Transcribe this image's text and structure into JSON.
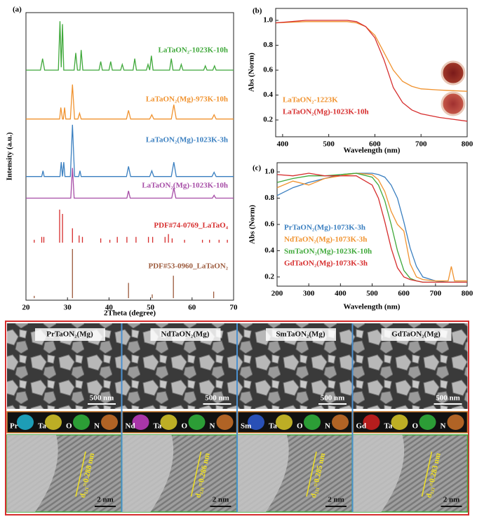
{
  "chart_data": [
    {
      "type": "line",
      "label": "(a)",
      "xlabel": "2Theta (degree)",
      "ylabel": "Intensity (a.u.)",
      "xlim": [
        20,
        70
      ],
      "ylim": [
        0,
        100
      ],
      "xticks": [
        20,
        30,
        40,
        50,
        60,
        70
      ],
      "series": [
        {
          "name": "LaTaON₂-1023K-10h",
          "color": "#3fa83a",
          "x": [
            20,
            23.5,
            24,
            24.5,
            27.8,
            28.2,
            28.5,
            28.8,
            29.1,
            31.6,
            32,
            32.4,
            33,
            33.3,
            33.7,
            37.6,
            38,
            38.4,
            40,
            40.4,
            40.8,
            42.8,
            43.2,
            43.6,
            45.8,
            46.2,
            46.6,
            49,
            49.4,
            49.8,
            50.2,
            50.6,
            54.6,
            55,
            55.4,
            57,
            57.4,
            57.8,
            62.8,
            63.2,
            63.6,
            65,
            65.4,
            65.8,
            70
          ],
          "values": [
            80,
            80,
            84,
            80,
            80,
            97,
            81,
            96,
            80,
            80,
            86,
            80,
            80,
            87,
            80,
            80,
            83,
            80,
            80,
            83,
            80,
            80,
            82,
            80,
            80,
            84,
            80,
            80,
            82,
            80,
            85,
            80,
            80,
            84,
            80,
            80,
            82,
            80,
            80,
            81.5,
            80,
            80,
            81.5,
            80,
            80
          ]
        },
        {
          "name": "LaTaON₂(Mg)-973K-10h",
          "color": "#f0922e",
          "x": [
            20,
            28.1,
            28.4,
            28.8,
            29,
            29.3,
            29.6,
            30.7,
            31.2,
            31.7,
            32.5,
            32.9,
            33.3,
            44.2,
            44.7,
            45.2,
            49.8,
            50.3,
            50.8,
            55,
            55.6,
            56.2,
            64.8,
            65.3,
            65.8,
            70
          ],
          "values": [
            63,
            63,
            67,
            63,
            63,
            67,
            63,
            63,
            75,
            63,
            63,
            65,
            63,
            63,
            66,
            63,
            63,
            64.5,
            63,
            63,
            68,
            63,
            63,
            64.5,
            63,
            63
          ]
        },
        {
          "name": "LaTaON₂(Mg)-1023K-3h",
          "color": "#3a7fc0",
          "x": [
            20,
            23.8,
            24.1,
            24.4,
            28.2,
            28.5,
            28.8,
            29.1,
            29.4,
            30.7,
            31.2,
            31.7,
            32.7,
            33,
            33.3,
            44.2,
            44.7,
            45.2,
            49.8,
            50.3,
            50.8,
            55,
            55.6,
            56.2,
            64.8,
            65.3,
            65.8,
            70
          ],
          "values": [
            43,
            43,
            45,
            43,
            43,
            48,
            43,
            48,
            43,
            43,
            61,
            43,
            43,
            45,
            43,
            43,
            46.5,
            43,
            43,
            45,
            43,
            43,
            48,
            43,
            43,
            44.5,
            43,
            43
          ]
        },
        {
          "name": "LaTaON₂(Mg)-1023K-10h",
          "color": "#a64ca6",
          "x": [
            20,
            30.8,
            31.2,
            31.6,
            44.3,
            44.7,
            45.1,
            55.1,
            55.6,
            56.1,
            64.9,
            65.3,
            65.7,
            70
          ],
          "values": [
            35.5,
            35.5,
            46,
            35.5,
            35.5,
            38,
            35.5,
            35.5,
            39,
            35.5,
            35.5,
            36.5,
            35.5,
            35.5
          ]
        },
        {
          "name": "PDF#74-0769_LaTaO₄",
          "color": "#d62d2d",
          "x": [
            22,
            22,
            22,
            23.8,
            23.8,
            23.8,
            24.3,
            24.3,
            24.3,
            28.1,
            28.1,
            28.1,
            28.8,
            28.8,
            28.8,
            31.2,
            31.2,
            31.2,
            32.8,
            32.8,
            32.8,
            33.6,
            33.6,
            33.6,
            38,
            38,
            38,
            40.2,
            40.2,
            40.2,
            42,
            42,
            42,
            44.3,
            44.3,
            44.3,
            46.5,
            46.5,
            46.5,
            49.5,
            49.5,
            49.5,
            50.5,
            50.5,
            50.5,
            53.5,
            53.5,
            53.5,
            54.3,
            54.3,
            54.3,
            55.2,
            55.2,
            55.2,
            58.2,
            58.2,
            58.2,
            62.5,
            62.5,
            62.5,
            64.2,
            64.2,
            64.2,
            66.5,
            66.5,
            66.5,
            68.5,
            68.5,
            68.5
          ],
          "values": [
            20,
            21,
            null,
            20,
            22,
            null,
            20,
            22,
            null,
            20,
            31.5,
            null,
            20,
            30,
            null,
            20,
            25,
            null,
            20,
            22.5,
            null,
            20,
            22,
            null,
            20,
            21.5,
            null,
            20,
            21,
            null,
            20,
            22,
            null,
            20,
            22,
            null,
            20,
            22,
            null,
            20,
            22,
            null,
            20,
            22,
            null,
            20,
            22,
            null,
            20,
            23,
            null,
            20,
            21.5,
            null,
            20,
            21,
            null,
            20,
            21,
            null,
            20,
            21,
            null,
            20,
            21,
            null,
            20,
            21,
            null
          ]
        },
        {
          "name": "PDF#53-0960_LaTaON₂",
          "color": "#9c5a3c",
          "x": [
            22,
            22,
            22,
            31.2,
            31.2,
            31.2,
            44.7,
            44.7,
            44.7,
            50.4,
            50.4,
            50.4,
            55.5,
            55.5,
            55.5,
            65.2,
            65.2,
            65.2
          ],
          "values": [
            0.7,
            1.5,
            null,
            0.7,
            17.8,
            null,
            0.7,
            6,
            null,
            0.7,
            2,
            null,
            0.7,
            8.5,
            null,
            0.7,
            3,
            null
          ]
        }
      ]
    },
    {
      "type": "line",
      "label": "(b)",
      "xlabel": "Wavelength (nm)",
      "ylabel": "Abs (Norm)",
      "xlim": [
        385,
        800
      ],
      "ylim": [
        0.065,
        1.096
      ],
      "xticks": [
        400,
        500,
        600,
        700,
        800
      ],
      "yticks": [
        0.2,
        0.4,
        0.6,
        0.8,
        {
          "value": 1,
          "label": "1.0"
        }
      ],
      "x": [
        385,
        450,
        500,
        540,
        560,
        580,
        600,
        620,
        640,
        660,
        680,
        700,
        740,
        800
      ],
      "series": [
        {
          "name": "LaTaON₂-1223K",
          "color": "#f0922e",
          "values": [
            0.98,
            0.99,
            0.99,
            0.99,
            0.98,
            0.95,
            0.88,
            0.74,
            0.6,
            0.51,
            0.47,
            0.45,
            0.44,
            0.43
          ]
        },
        {
          "name": "LaTaON₂(Mg)-1023K-10h",
          "color": "#d62d2d",
          "values": [
            0.98,
            1.0,
            1.0,
            1.0,
            0.99,
            0.95,
            0.86,
            0.68,
            0.46,
            0.34,
            0.28,
            0.25,
            0.22,
            0.19
          ]
        }
      ]
    },
    {
      "type": "line",
      "label": "(c)",
      "xlabel": "Wavelength (nm)",
      "ylabel": "Abs (Norm)",
      "xlim": [
        200,
        800
      ],
      "ylim": [
        0.13,
        1.07
      ],
      "xticks": [
        200,
        300,
        400,
        500,
        600,
        700,
        800
      ],
      "yticks": [
        0.2,
        0.4,
        0.6,
        0.8,
        {
          "value": 1,
          "label": "1.0"
        }
      ],
      "x": [
        200,
        250,
        300,
        350,
        400,
        450,
        500,
        520,
        540,
        560,
        580,
        600,
        620,
        640,
        660,
        700,
        740,
        750,
        760,
        800
      ],
      "series": [
        {
          "name": "PrTaON₂(Mg)-1073K-3h",
          "color": "#3a7fc0",
          "values": [
            0.82,
            0.88,
            0.92,
            0.95,
            0.98,
            0.99,
            0.99,
            0.98,
            0.96,
            0.9,
            0.8,
            0.62,
            0.42,
            0.28,
            0.2,
            0.17,
            0.16,
            0.16,
            0.16,
            0.16
          ]
        },
        {
          "name": "NdTaON₂(Mg)-1073K-3h",
          "color": "#f0922e",
          "values": [
            0.88,
            0.93,
            0.9,
            0.95,
            0.97,
            0.99,
            0.98,
            0.94,
            0.85,
            0.7,
            0.6,
            0.55,
            0.3,
            0.2,
            0.18,
            0.17,
            0.17,
            0.28,
            0.17,
            0.17
          ]
        },
        {
          "name": "SmTaON₂(Mg)-1023K-10h",
          "color": "#3fa83a",
          "values": [
            0.92,
            0.95,
            0.97,
            0.97,
            0.98,
            0.99,
            0.96,
            0.9,
            0.78,
            0.6,
            0.4,
            0.25,
            0.19,
            0.17,
            0.16,
            0.16,
            0.16,
            0.16,
            0.16,
            0.16
          ]
        },
        {
          "name": "GdTaON₂(Mg)-1073K-3h",
          "color": "#d62d2d",
          "values": [
            0.98,
            0.97,
            0.99,
            0.97,
            0.97,
            0.97,
            0.9,
            0.8,
            0.62,
            0.42,
            0.27,
            0.2,
            0.18,
            0.17,
            0.16,
            0.16,
            0.16,
            0.16,
            0.16,
            0.16
          ]
        }
      ]
    }
  ],
  "panel_d": {
    "label": "(d)",
    "samples": [
      {
        "name": "PrTaON₂(Mg)",
        "scale_sem": "500 nm",
        "elements": [
          "Pr",
          "Ta",
          "O",
          "N"
        ],
        "d_spacing": "d₁₂₁=0.288 nm",
        "scale_tem": "2 nm"
      },
      {
        "name": "NdTaON₂(Mg)",
        "scale_sem": "500 nm",
        "elements": [
          "Nd",
          "Ta",
          "O",
          "N"
        ],
        "d_spacing": "d₁₂₁=0.286 nm",
        "scale_tem": "2 nm"
      },
      {
        "name": "SmTaON₂(Mg)",
        "scale_sem": "500 nm",
        "elements": [
          "Sm",
          "Ta",
          "O",
          "N"
        ],
        "d_spacing": "d₁₂₁=0.285 nm",
        "scale_tem": "2 nm"
      },
      {
        "name": "GdTaON₂(Mg)",
        "scale_sem": "500 nm",
        "elements": [
          "Gd",
          "Ta",
          "O",
          "N"
        ],
        "d_spacing": "d₁₂₁=0.283 nm",
        "scale_tem": "2 nm"
      }
    ]
  }
}
